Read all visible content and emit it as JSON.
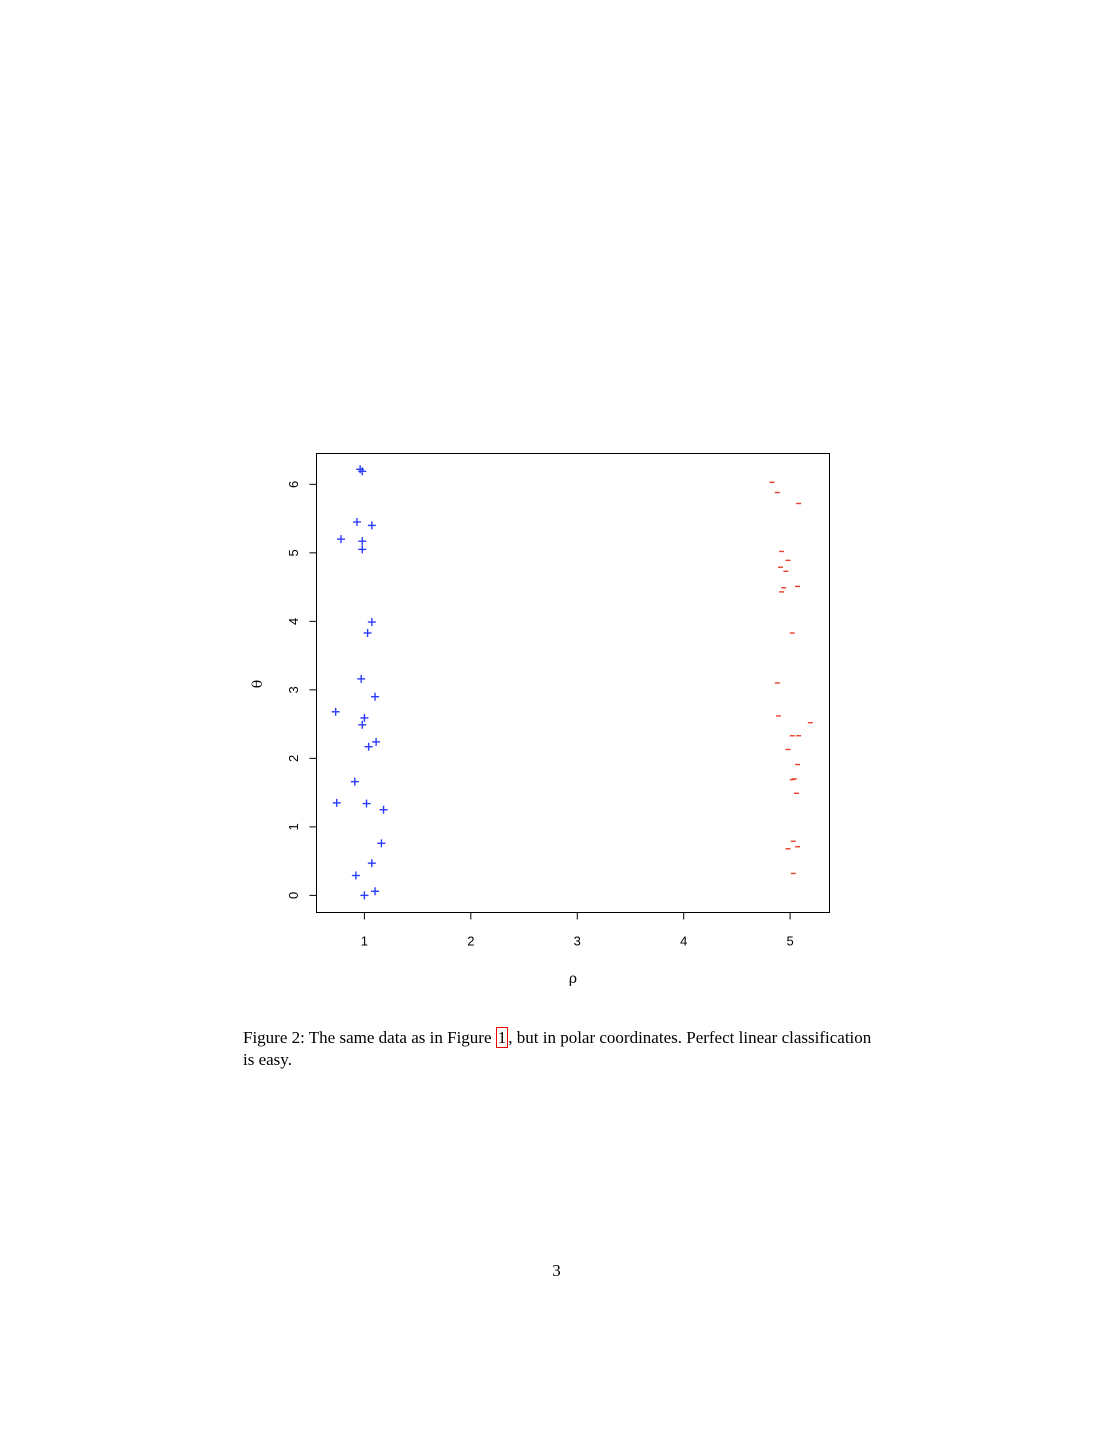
{
  "chart_data": {
    "type": "scatter",
    "title": "",
    "xlabel": "ρ",
    "ylabel": "θ",
    "xlim": [
      0.55,
      5.37
    ],
    "ylim": [
      -0.25,
      6.45
    ],
    "xticks": [
      1,
      2,
      3,
      4,
      5
    ],
    "yticks": [
      0,
      1,
      2,
      3,
      4,
      5,
      6
    ],
    "grid": false,
    "series": [
      {
        "marker": "+",
        "color": "#2a3cff",
        "points": [
          [
            0.96,
            6.22
          ],
          [
            0.98,
            6.19
          ],
          [
            0.93,
            5.45
          ],
          [
            1.07,
            5.4
          ],
          [
            0.78,
            5.2
          ],
          [
            0.98,
            5.17
          ],
          [
            0.98,
            5.05
          ],
          [
            1.07,
            3.99
          ],
          [
            1.03,
            3.83
          ],
          [
            0.97,
            3.16
          ],
          [
            1.1,
            2.9
          ],
          [
            0.73,
            2.68
          ],
          [
            1.0,
            2.59
          ],
          [
            0.98,
            2.49
          ],
          [
            1.11,
            2.24
          ],
          [
            1.04,
            2.17
          ],
          [
            0.91,
            1.66
          ],
          [
            0.74,
            1.35
          ],
          [
            1.02,
            1.34
          ],
          [
            1.18,
            1.25
          ],
          [
            1.16,
            0.76
          ],
          [
            1.07,
            0.47
          ],
          [
            0.92,
            0.29
          ],
          [
            1.0,
            0.0
          ],
          [
            1.1,
            0.06
          ]
        ]
      },
      {
        "marker": "-",
        "color": "#e8402a",
        "points": [
          [
            4.83,
            6.03
          ],
          [
            4.88,
            5.88
          ],
          [
            5.08,
            5.72
          ],
          [
            4.92,
            5.02
          ],
          [
            4.98,
            4.89
          ],
          [
            4.91,
            4.79
          ],
          [
            4.96,
            4.73
          ],
          [
            5.07,
            4.51
          ],
          [
            4.94,
            4.49
          ],
          [
            4.92,
            4.43
          ],
          [
            5.02,
            3.83
          ],
          [
            4.88,
            3.1
          ],
          [
            4.89,
            2.62
          ],
          [
            5.19,
            2.52
          ],
          [
            5.02,
            2.33
          ],
          [
            5.08,
            2.33
          ],
          [
            4.98,
            2.13
          ],
          [
            5.07,
            1.91
          ],
          [
            5.02,
            1.69
          ],
          [
            5.04,
            1.7
          ],
          [
            5.06,
            1.49
          ],
          [
            5.03,
            0.79
          ],
          [
            5.07,
            0.71
          ],
          [
            4.98,
            0.68
          ],
          [
            5.03,
            0.32
          ]
        ]
      }
    ]
  },
  "caption": {
    "prefix": "Figure 2: The same data as in Figure ",
    "ref": "1",
    "suffix": ", but in polar coordinates. Perfect linear classification is easy."
  },
  "page_number": "3"
}
